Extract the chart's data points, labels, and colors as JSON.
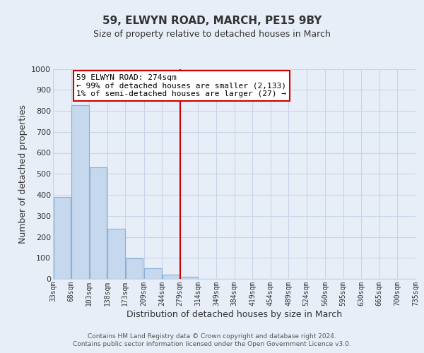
{
  "title": "59, ELWYN ROAD, MARCH, PE15 9BY",
  "subtitle": "Size of property relative to detached houses in March",
  "xlabel": "Distribution of detached houses by size in March",
  "ylabel": "Number of detached properties",
  "bar_edges": [
    33,
    68,
    103,
    138,
    173,
    209,
    244,
    279,
    314,
    349,
    384,
    419,
    454,
    489,
    524,
    560,
    595,
    630,
    665,
    700,
    735
  ],
  "bar_heights": [
    390,
    826,
    530,
    240,
    97,
    52,
    21,
    10,
    0,
    0,
    0,
    0,
    0,
    0,
    0,
    0,
    0,
    0,
    0,
    0
  ],
  "bar_color": "#c5d8ee",
  "bar_edge_color": "#8ab0d4",
  "vline_x": 279,
  "vline_color": "#cc0000",
  "annotation_title": "59 ELWYN ROAD: 274sqm",
  "annotation_line1": "← 99% of detached houses are smaller (2,133)",
  "annotation_line2": "1% of semi-detached houses are larger (27) →",
  "annotation_box_color": "#ffffff",
  "annotation_box_edge": "#cc0000",
  "ylim": [
    0,
    1000
  ],
  "yticks": [
    0,
    100,
    200,
    300,
    400,
    500,
    600,
    700,
    800,
    900,
    1000
  ],
  "tick_labels": [
    "33sqm",
    "68sqm",
    "103sqm",
    "138sqm",
    "173sqm",
    "209sqm",
    "244sqm",
    "279sqm",
    "314sqm",
    "349sqm",
    "384sqm",
    "419sqm",
    "454sqm",
    "489sqm",
    "524sqm",
    "560sqm",
    "595sqm",
    "630sqm",
    "665sqm",
    "700sqm",
    "735sqm"
  ],
  "background_color": "#e8eef8",
  "plot_bg_color": "#e8eef8",
  "grid_color": "#c8d4e8",
  "footer1": "Contains HM Land Registry data © Crown copyright and database right 2024.",
  "footer2": "Contains public sector information licensed under the Open Government Licence v3.0."
}
